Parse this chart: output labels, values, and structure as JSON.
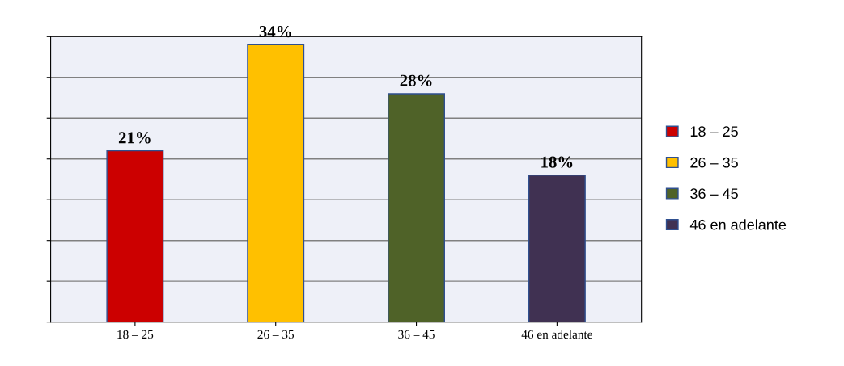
{
  "chart_data": {
    "type": "bar",
    "categories": [
      "18 – 25",
      "26 – 35",
      "36 – 45",
      "46 en adelante"
    ],
    "series": [
      {
        "name": "18 – 25",
        "color": "#cc0000",
        "values": [
          21,
          null,
          null,
          null
        ],
        "value_labels": [
          "21%",
          null,
          null,
          null
        ]
      },
      {
        "name": "26 – 35",
        "color": "#ffc000",
        "values": [
          null,
          34,
          null,
          null
        ],
        "value_labels": [
          null,
          "34%",
          null,
          null
        ]
      },
      {
        "name": "36 – 45",
        "color": "#4f6228",
        "values": [
          null,
          null,
          28,
          null
        ],
        "value_labels": [
          null,
          null,
          "28%",
          null
        ]
      },
      {
        "name": "46 en adelante",
        "color": "#403152",
        "values": [
          null,
          null,
          null,
          18
        ],
        "value_labels": [
          null,
          null,
          null,
          "18%"
        ]
      }
    ],
    "ylim": [
      0,
      35
    ],
    "yticks": [
      {
        "value": 0,
        "label": null
      },
      {
        "value": 5,
        "label": null
      },
      {
        "value": 10,
        "label": null
      },
      {
        "value": 15,
        "label": null
      },
      {
        "value": 20,
        "label": null
      },
      {
        "value": 25,
        "label": null
      },
      {
        "value": 30,
        "label": null
      },
      {
        "value": 35,
        "label": null
      }
    ],
    "tick_labels": "x",
    "grid": "y",
    "legend": "right"
  }
}
